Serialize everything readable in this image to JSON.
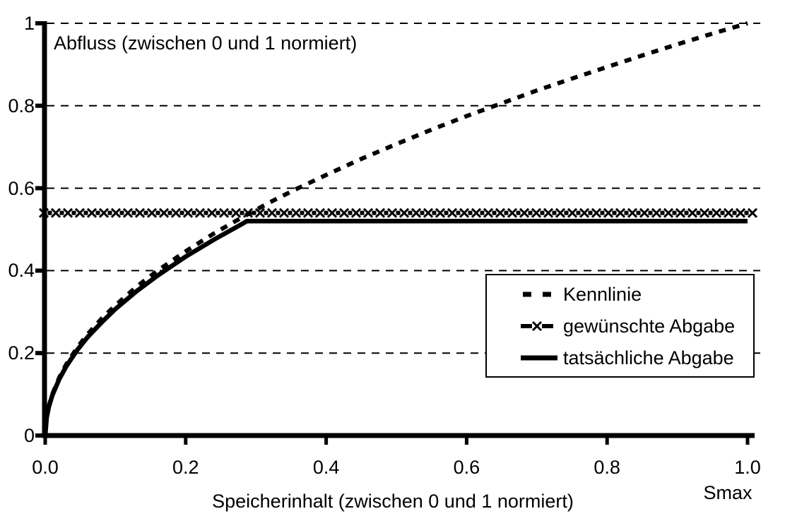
{
  "chart_data": {
    "type": "line",
    "title": "Abfluss (zwischen 0 und 1 normiert)",
    "xlabel": "Speicherinhalt (zwischen 0 und 1 normiert)",
    "xlabel_right": "Smax",
    "xlim": [
      0,
      1
    ],
    "ylim": [
      0,
      1
    ],
    "x_ticks": [
      0,
      0.2,
      0.4,
      0.6,
      0.8,
      1
    ],
    "x_tick_labels": [
      "0.0",
      "0.2",
      "0.4",
      "0.6",
      "0.8",
      "1.0"
    ],
    "y_ticks": [
      0,
      0.2,
      0.4,
      0.6,
      0.8,
      1
    ],
    "y_tick_labels": [
      "0",
      "0.2",
      "0.4",
      "0.6",
      "0.8",
      "1"
    ],
    "gridlines_y": [
      0.2,
      0.4,
      0.6,
      0.8,
      1
    ],
    "grid_style": "dashed-horizontal",
    "legend": {
      "position": "middle-right",
      "border": true
    },
    "colors": {
      "line": "#000000",
      "background": "#ffffff"
    },
    "series": [
      {
        "name": "Kennlinie",
        "style": "dashed",
        "x": [
          0,
          0.002,
          0.005,
          0.01,
          0.02,
          0.03,
          0.045,
          0.06,
          0.08,
          0.1,
          0.13,
          0.16,
          0.2,
          0.24,
          0.28,
          0.32,
          0.36,
          0.4,
          0.45,
          0.5,
          0.55,
          0.6,
          0.65,
          0.7,
          0.75,
          0.8,
          0.85,
          0.9,
          0.95,
          1
        ],
        "y": [
          0,
          0.045,
          0.071,
          0.1,
          0.141,
          0.173,
          0.212,
          0.245,
          0.283,
          0.316,
          0.361,
          0.4,
          0.447,
          0.49,
          0.529,
          0.566,
          0.6,
          0.632,
          0.671,
          0.707,
          0.742,
          0.775,
          0.806,
          0.837,
          0.866,
          0.894,
          0.922,
          0.949,
          0.975,
          1
        ]
      },
      {
        "name": "gewünschte Abgabe",
        "style": "dashed-x-markers",
        "constant_value": 0.54,
        "x": [
          0,
          1
        ],
        "y": [
          0.54,
          0.54
        ]
      },
      {
        "name": "tatsächliche Abgabe",
        "style": "solid",
        "plateau_value": 0.52,
        "x": [
          0,
          0.002,
          0.005,
          0.01,
          0.02,
          0.03,
          0.045,
          0.06,
          0.08,
          0.1,
          0.13,
          0.16,
          0.2,
          0.24,
          0.28,
          0.287,
          0.32,
          0.4,
          0.5,
          0.6,
          0.7,
          0.8,
          0.9,
          1
        ],
        "y": [
          0,
          0.043,
          0.069,
          0.097,
          0.137,
          0.168,
          0.206,
          0.238,
          0.274,
          0.307,
          0.35,
          0.388,
          0.434,
          0.475,
          0.513,
          0.52,
          0.52,
          0.52,
          0.52,
          0.52,
          0.52,
          0.52,
          0.52,
          0.52
        ]
      }
    ]
  }
}
